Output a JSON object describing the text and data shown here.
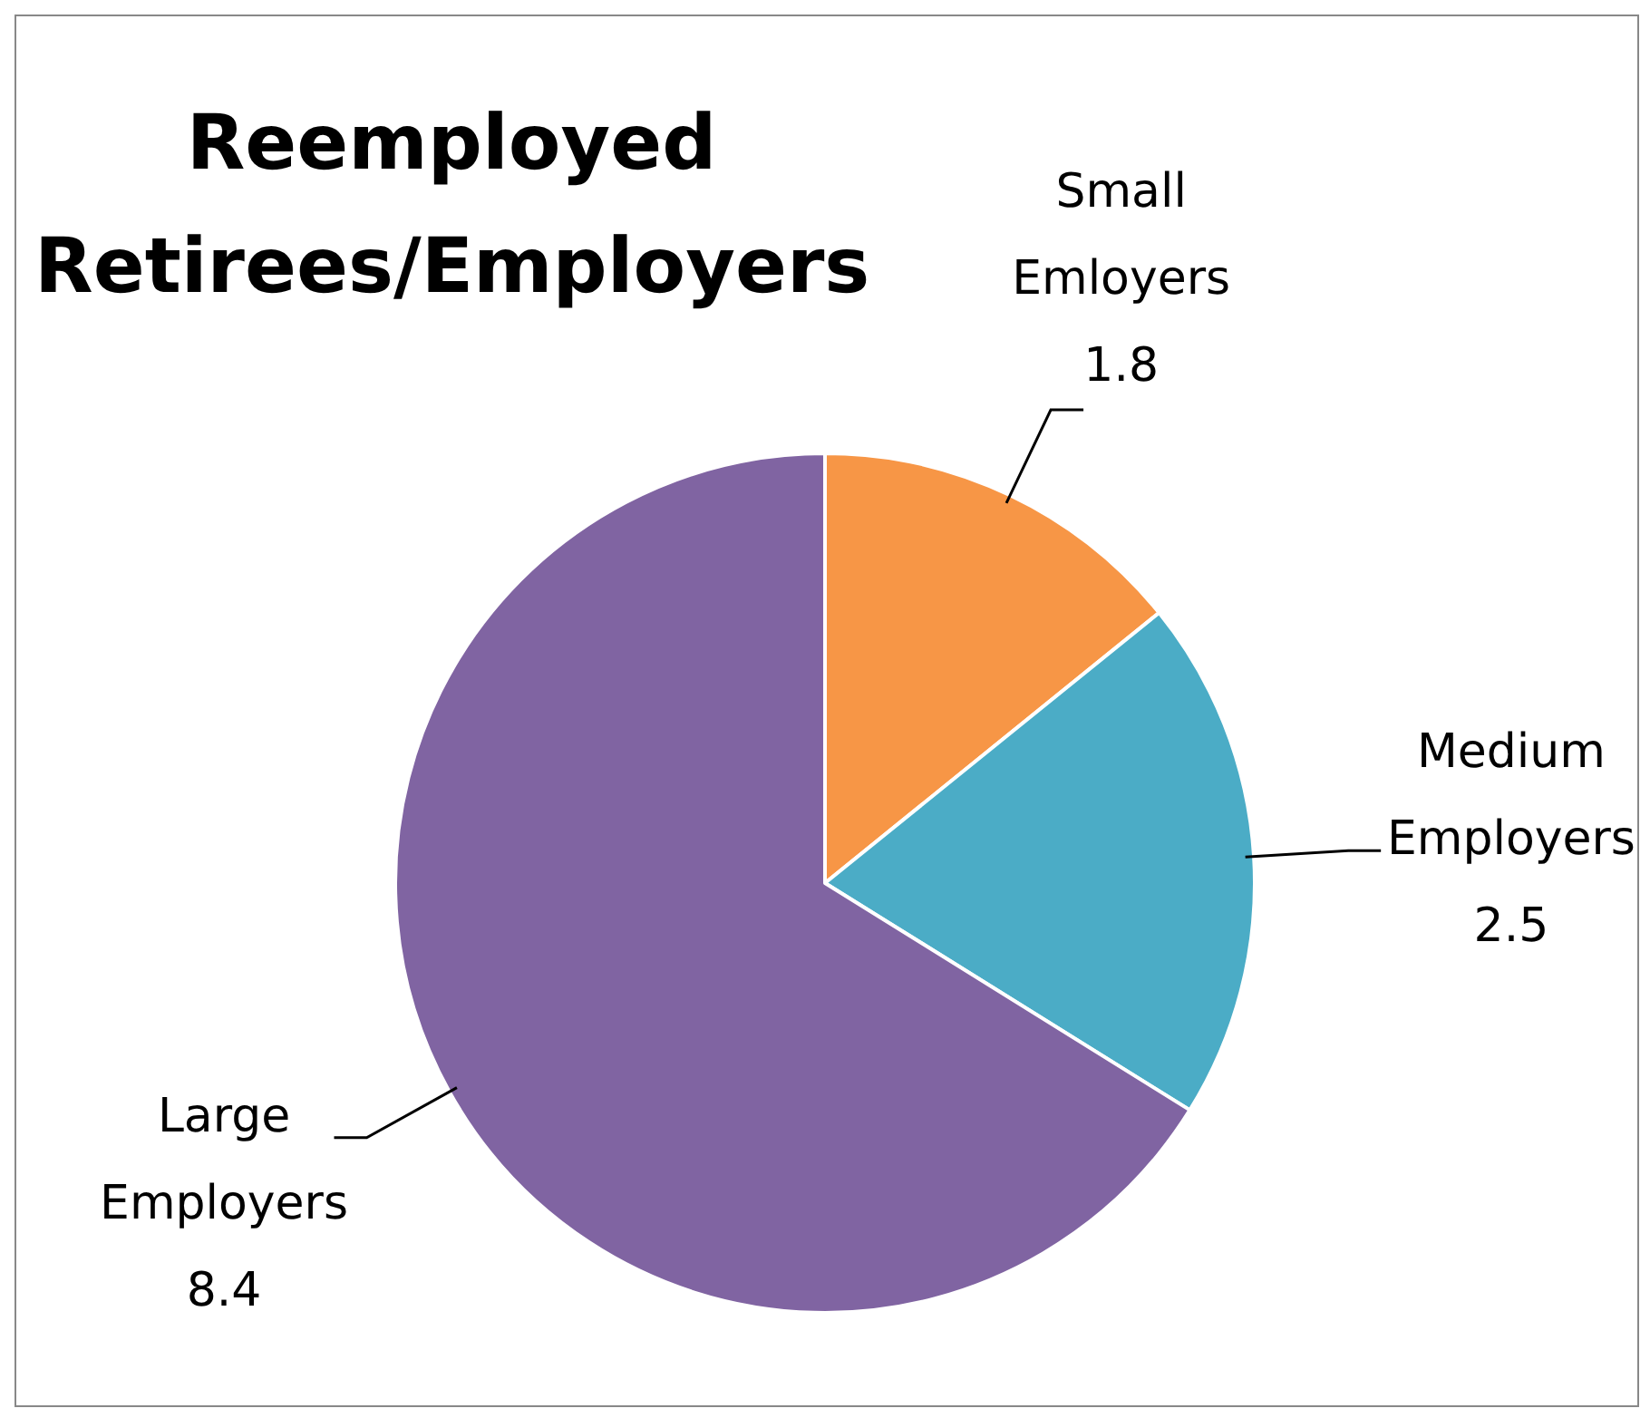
{
  "chart_data": {
    "type": "pie",
    "title": "Reemployed Retirees/Employers",
    "categories": [
      "Small Emloyers",
      "Medium Employers",
      "Large Employers"
    ],
    "values": [
      1.8,
      2.5,
      8.4
    ],
    "colors": [
      "#f79646",
      "#4bacc6",
      "#8064a2"
    ],
    "data_labels": true,
    "legend": false
  }
}
